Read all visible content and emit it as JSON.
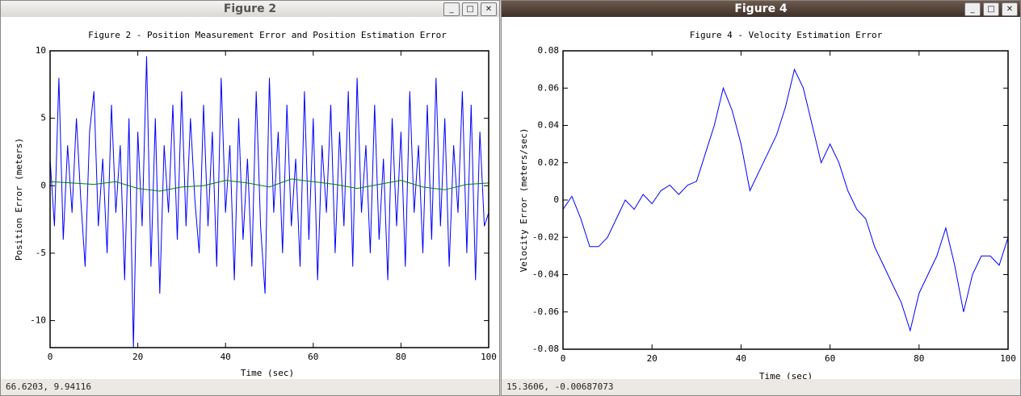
{
  "windows": [
    {
      "title": "Figure 2",
      "status": "66.6203,  9.94116"
    },
    {
      "title": "Figure 4",
      "status": "15.3606, -0.00687073"
    }
  ],
  "chart_data": [
    {
      "type": "line",
      "title": "Figure 2 - Position Measurement Error and Position Estimation Error",
      "xlabel": "Time (sec)",
      "ylabel": "Position Error (meters)",
      "xlim": [
        0,
        100
      ],
      "ylim": [
        -12,
        10
      ],
      "xticks": [
        0,
        20,
        40,
        60,
        80,
        100
      ],
      "yticks": [
        -10,
        -5,
        0,
        5,
        10
      ],
      "series": [
        {
          "color": "#0000ff",
          "x": [
            0,
            1,
            2,
            3,
            4,
            5,
            6,
            7,
            8,
            9,
            10,
            11,
            12,
            13,
            14,
            15,
            16,
            17,
            18,
            19,
            20,
            21,
            22,
            23,
            24,
            25,
            26,
            27,
            28,
            29,
            30,
            31,
            32,
            33,
            34,
            35,
            36,
            37,
            38,
            39,
            40,
            41,
            42,
            43,
            44,
            45,
            46,
            47,
            48,
            49,
            50,
            51,
            52,
            53,
            54,
            55,
            56,
            57,
            58,
            59,
            60,
            61,
            62,
            63,
            64,
            65,
            66,
            67,
            68,
            69,
            70,
            71,
            72,
            73,
            74,
            75,
            76,
            77,
            78,
            79,
            80,
            81,
            82,
            83,
            84,
            85,
            86,
            87,
            88,
            89,
            90,
            91,
            92,
            93,
            94,
            95,
            96,
            97,
            98,
            99,
            100
          ],
          "values": [
            2,
            -3,
            8,
            -4,
            3,
            -2,
            5,
            -1,
            -6,
            4,
            7,
            -3,
            2,
            -5,
            6,
            -2,
            3,
            -7,
            5,
            -12,
            4,
            -3,
            9.6,
            -6,
            5,
            -8,
            3,
            -2,
            6,
            -4,
            7,
            -3,
            5,
            -1,
            -5,
            6,
            -3,
            4,
            -6,
            8,
            -2,
            3,
            -7,
            5,
            -4,
            2,
            -6,
            7,
            -3,
            -8,
            8,
            -2,
            4,
            -5,
            6,
            -3,
            2,
            -6,
            7,
            -4,
            5,
            -7,
            3,
            -2,
            6,
            -5,
            4,
            -3,
            7,
            -6,
            8,
            -2,
            3,
            -5,
            6,
            -4,
            2,
            -7,
            5,
            -3,
            4,
            -6,
            7,
            -2,
            3,
            -5,
            6,
            -4,
            8,
            -3,
            5,
            -6,
            3,
            -2,
            7,
            -5,
            6,
            -7,
            4,
            -3,
            -2
          ]
        },
        {
          "color": "#008000",
          "x": [
            0,
            5,
            10,
            15,
            20,
            25,
            30,
            35,
            40,
            45,
            50,
            55,
            60,
            65,
            70,
            75,
            80,
            85,
            90,
            95,
            100
          ],
          "values": [
            0.3,
            0.2,
            0.1,
            0.3,
            -0.2,
            -0.4,
            -0.1,
            0,
            0.4,
            0.2,
            -0.1,
            0.5,
            0.3,
            0.1,
            -0.2,
            0.1,
            0.4,
            -0.1,
            -0.3,
            0.1,
            0.2
          ]
        }
      ]
    },
    {
      "type": "line",
      "title": "Figure 4 - Velocity Estimation Error",
      "xlabel": "Time (sec)",
      "ylabel": "Velocity Error (meters/sec)",
      "xlim": [
        0,
        100
      ],
      "ylim": [
        -0.08,
        0.08
      ],
      "xticks": [
        0,
        20,
        40,
        60,
        80,
        100
      ],
      "yticks": [
        -0.08,
        -0.06,
        -0.04,
        -0.02,
        0,
        0.02,
        0.04,
        0.06,
        0.08
      ],
      "series": [
        {
          "color": "#0000ff",
          "x": [
            0,
            2,
            4,
            6,
            8,
            10,
            12,
            14,
            16,
            18,
            20,
            22,
            24,
            26,
            28,
            30,
            32,
            34,
            36,
            38,
            40,
            42,
            44,
            46,
            48,
            50,
            52,
            54,
            56,
            58,
            60,
            62,
            64,
            66,
            68,
            70,
            72,
            74,
            76,
            78,
            80,
            82,
            84,
            86,
            88,
            90,
            92,
            94,
            96,
            98,
            100
          ],
          "values": [
            -0.005,
            0.002,
            -0.01,
            -0.025,
            -0.025,
            -0.02,
            -0.01,
            0,
            -0.005,
            0.003,
            -0.002,
            0.005,
            0.008,
            0.003,
            0.008,
            0.01,
            0.025,
            0.04,
            0.06,
            0.048,
            0.03,
            0.005,
            0.015,
            0.025,
            0.035,
            0.05,
            0.07,
            0.06,
            0.04,
            0.02,
            0.03,
            0.02,
            0.005,
            -0.005,
            -0.01,
            -0.025,
            -0.035,
            -0.045,
            -0.055,
            -0.07,
            -0.05,
            -0.04,
            -0.03,
            -0.015,
            -0.035,
            -0.06,
            -0.04,
            -0.03,
            -0.03,
            -0.035,
            -0.02
          ]
        }
      ]
    }
  ]
}
